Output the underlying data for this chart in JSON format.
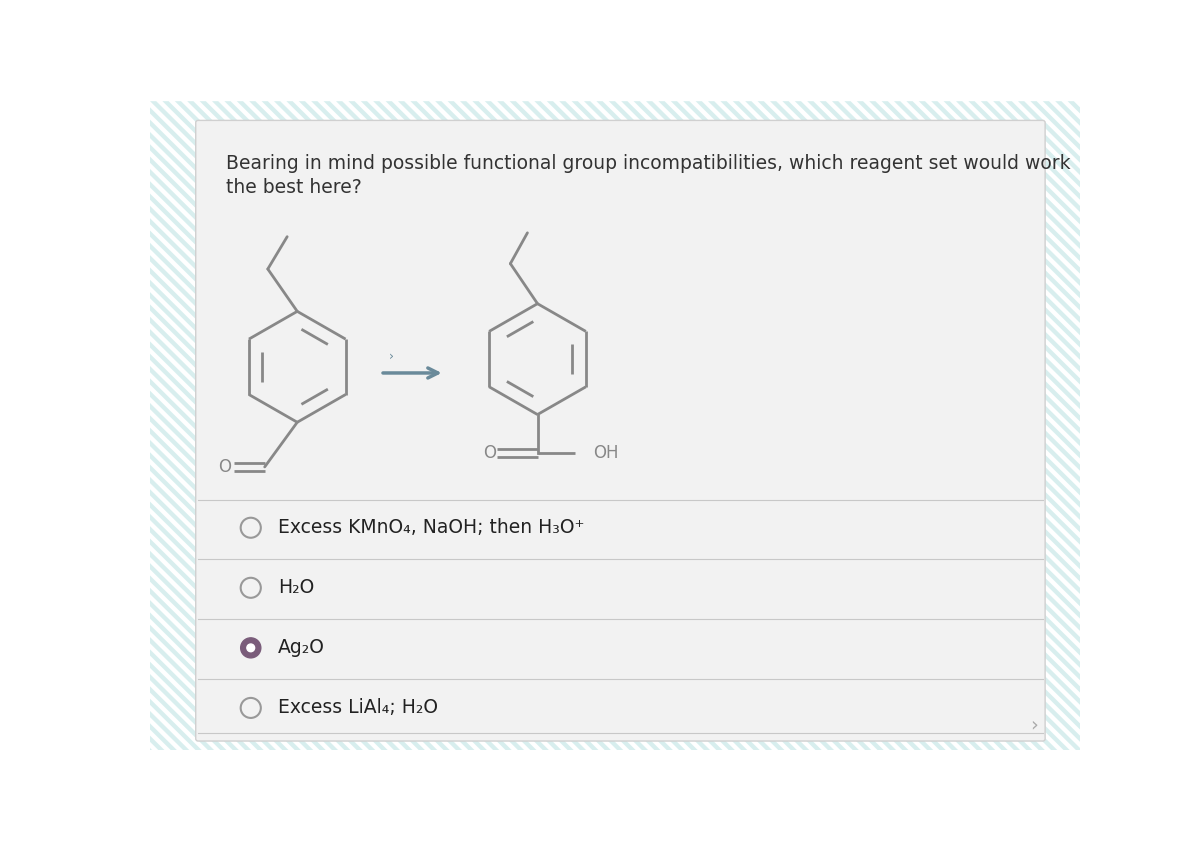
{
  "question_line1": "Bearing in mind possible functional group incompatibilities, which reagent set would work",
  "question_line2": "the best here?",
  "options": [
    {
      "text": "Excess KMnO₄, NaOH; then H₃O⁺",
      "selected": false
    },
    {
      "text": "H₂O",
      "selected": false
    },
    {
      "text": "Ag₂O",
      "selected": true
    },
    {
      "text": "Excess LiAl₄; H₂O",
      "selected": false
    }
  ],
  "bg_stripe_color1": "#c8e8e8",
  "bg_stripe_color2": "#ffffff",
  "card_color": "#f2f2f2",
  "card_edge_color": "#d0d0d0",
  "text_color": "#333333",
  "option_text_color": "#222222",
  "selected_fill_color": "#7a5c7a",
  "selected_inner_color": "#ffffff",
  "unselected_edge_color": "#999999",
  "divider_color": "#c8c8c8",
  "arrow_color": "#6a8a9a",
  "molecule_color": "#888888",
  "molecule_lw": 2.0,
  "font_size_question": 13.5,
  "font_size_option": 13.5,
  "font_size_molecule_label": 12
}
